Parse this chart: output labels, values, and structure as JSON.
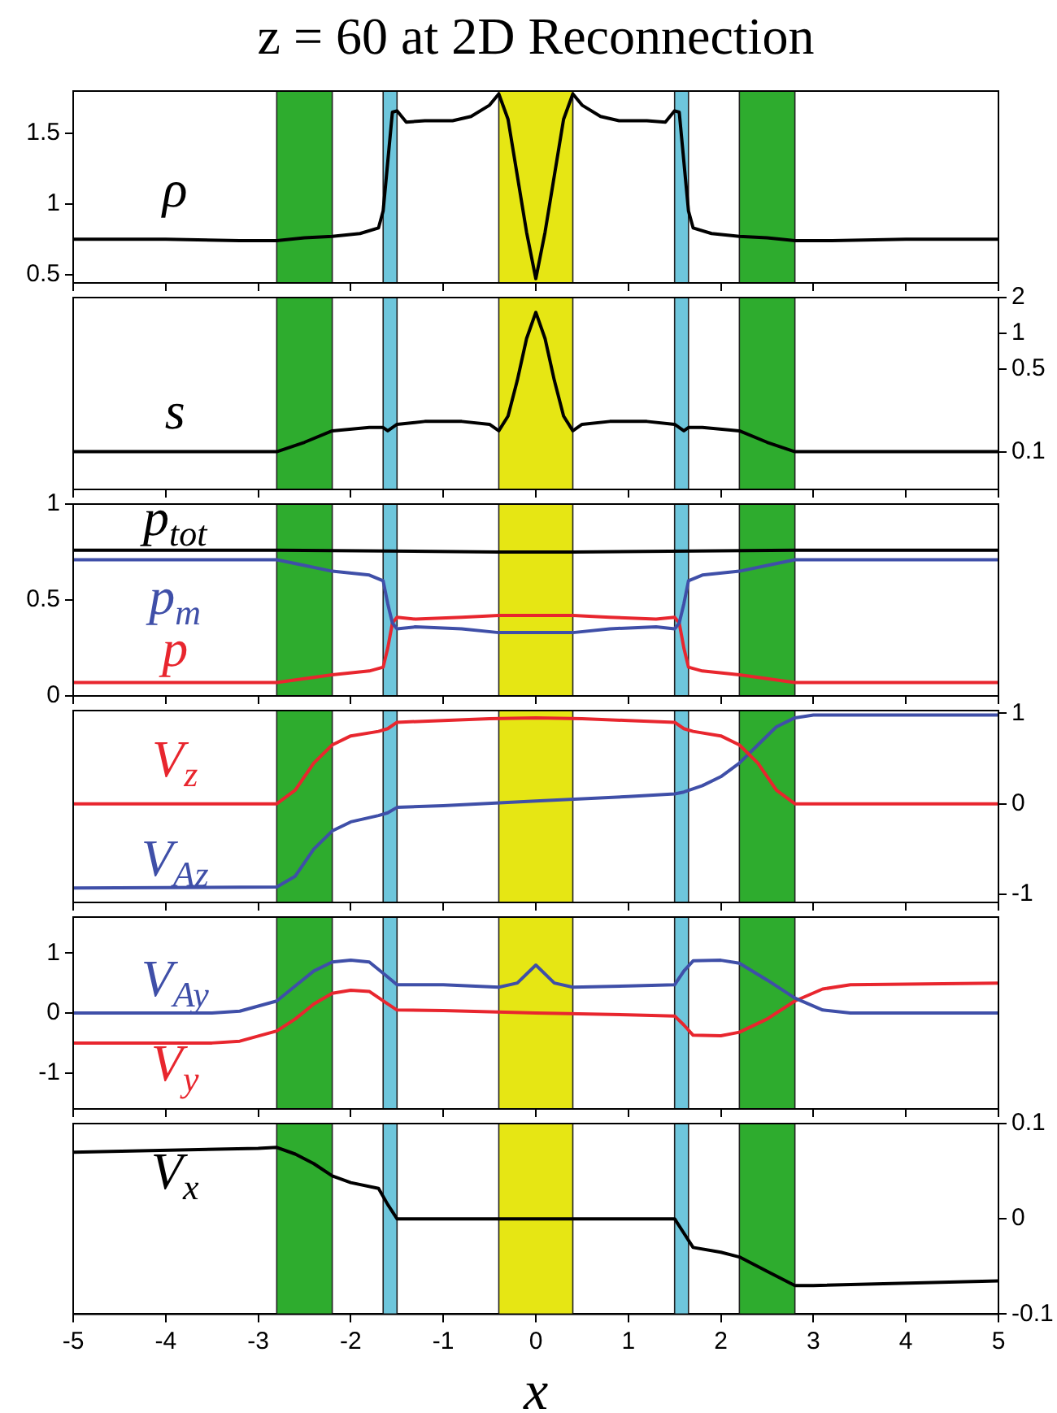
{
  "chart_data": [
    {
      "type": "line",
      "title": "z = 60 at 2D Reconnection",
      "xlim": [
        -5,
        5
      ],
      "xticks": [
        -5,
        -4,
        -3,
        -2,
        -1,
        0,
        1,
        2,
        3,
        4,
        5
      ],
      "ylim": [
        0.44,
        1.8
      ],
      "yticks": [
        0.5,
        1,
        1.5
      ],
      "tick_labels": "y",
      "bands": [
        {
          "axis": "x",
          "from": -2.8,
          "to": -2.2,
          "color": "#2eac2e"
        },
        {
          "axis": "x",
          "from": -1.65,
          "to": -1.5,
          "color": "#6ec6dc"
        },
        {
          "axis": "x",
          "from": -0.4,
          "to": 0.4,
          "color": "#e6e614"
        },
        {
          "axis": "x",
          "from": 1.5,
          "to": 1.65,
          "color": "#6ec6dc"
        },
        {
          "axis": "x",
          "from": 2.2,
          "to": 2.8,
          "color": "#2eac2e"
        }
      ],
      "series": [
        {
          "name": "ρ",
          "color": "#000000",
          "x": [
            -5,
            -4,
            -3.2,
            -2.8,
            -2.5,
            -2.2,
            -1.9,
            -1.7,
            -1.65,
            -1.6,
            -1.55,
            -1.5,
            -1.4,
            -1.2,
            -0.9,
            -0.7,
            -0.5,
            -0.4,
            -0.3,
            -0.2,
            -0.1,
            0,
            0.1,
            0.2,
            0.3,
            0.4,
            0.5,
            0.7,
            0.9,
            1.2,
            1.4,
            1.5,
            1.55,
            1.6,
            1.65,
            1.7,
            1.9,
            2.2,
            2.5,
            2.8,
            3.2,
            4,
            5
          ],
          "values": [
            0.75,
            0.75,
            0.74,
            0.74,
            0.76,
            0.77,
            0.79,
            0.83,
            0.95,
            1.3,
            1.65,
            1.66,
            1.58,
            1.59,
            1.59,
            1.62,
            1.7,
            1.78,
            1.6,
            1.2,
            0.8,
            0.47,
            0.8,
            1.2,
            1.6,
            1.78,
            1.7,
            1.62,
            1.59,
            1.59,
            1.58,
            1.66,
            1.65,
            1.3,
            0.95,
            0.83,
            0.79,
            0.77,
            0.76,
            0.74,
            0.74,
            0.75,
            0.75
          ]
        }
      ]
    },
    {
      "type": "line",
      "xlim": [
        -5,
        5
      ],
      "xticks": [
        -5,
        -4,
        -3,
        -2,
        -1,
        0,
        1,
        2,
        3,
        4,
        5
      ],
      "y2lim": [
        0.048,
        2
      ],
      "y2ticks": [
        0.1,
        0.5,
        1,
        2
      ],
      "log": "y2",
      "tick_labels": "y",
      "bands": [
        {
          "axis": "x",
          "from": -2.8,
          "to": -2.2,
          "color": "#2eac2e"
        },
        {
          "axis": "x",
          "from": -1.65,
          "to": -1.5,
          "color": "#6ec6dc"
        },
        {
          "axis": "x",
          "from": -0.4,
          "to": 0.4,
          "color": "#e6e614"
        },
        {
          "axis": "x",
          "from": 1.5,
          "to": 1.65,
          "color": "#6ec6dc"
        },
        {
          "axis": "x",
          "from": 2.2,
          "to": 2.8,
          "color": "#2eac2e"
        }
      ],
      "series": [
        {
          "name": "s",
          "color": "#000000",
          "axis": "y2",
          "x": [
            -5,
            -3,
            -2.8,
            -2.5,
            -2.2,
            -1.8,
            -1.65,
            -1.6,
            -1.5,
            -1.2,
            -0.8,
            -0.5,
            -0.4,
            -0.3,
            -0.2,
            -0.1,
            0,
            0.1,
            0.2,
            0.3,
            0.4,
            0.5,
            0.8,
            1.2,
            1.5,
            1.6,
            1.65,
            1.8,
            2.2,
            2.5,
            2.8,
            3,
            5
          ],
          "values": [
            0.1,
            0.1,
            0.1,
            0.12,
            0.15,
            0.16,
            0.16,
            0.15,
            0.17,
            0.18,
            0.18,
            0.17,
            0.15,
            0.2,
            0.4,
            0.9,
            1.5,
            0.9,
            0.4,
            0.2,
            0.15,
            0.17,
            0.18,
            0.18,
            0.17,
            0.15,
            0.16,
            0.16,
            0.15,
            0.12,
            0.1,
            0.1,
            0.1
          ]
        }
      ]
    },
    {
      "type": "line",
      "xlim": [
        -5,
        5
      ],
      "xticks": [
        -5,
        -4,
        -3,
        -2,
        -1,
        0,
        1,
        2,
        3,
        4,
        5
      ],
      "ylim": [
        0,
        1
      ],
      "yticks": [
        0,
        0.5,
        1
      ],
      "tick_labels": "y",
      "bands": [
        {
          "axis": "x",
          "from": -2.8,
          "to": -2.2,
          "color": "#2eac2e"
        },
        {
          "axis": "x",
          "from": -1.65,
          "to": -1.5,
          "color": "#6ec6dc"
        },
        {
          "axis": "x",
          "from": -0.4,
          "to": 0.4,
          "color": "#e6e614"
        },
        {
          "axis": "x",
          "from": 1.5,
          "to": 1.65,
          "color": "#6ec6dc"
        },
        {
          "axis": "x",
          "from": 2.2,
          "to": 2.8,
          "color": "#2eac2e"
        }
      ],
      "series": [
        {
          "name": "p$_{tot}$",
          "color": "#000000",
          "x": [
            -5,
            -2.8,
            -0.4,
            0,
            0.4,
            2.8,
            5
          ],
          "values": [
            0.76,
            0.76,
            0.75,
            0.75,
            0.75,
            0.76,
            0.76
          ]
        },
        {
          "name": "p$_{m}$",
          "color": "#3f4fa8",
          "x": [
            -5,
            -2.8,
            -2.5,
            -2.2,
            -1.8,
            -1.65,
            -1.6,
            -1.55,
            -1.5,
            -1.3,
            -0.8,
            -0.4,
            0,
            0.4,
            0.8,
            1.3,
            1.5,
            1.55,
            1.6,
            1.65,
            1.8,
            2.2,
            2.5,
            2.8,
            5
          ],
          "values": [
            0.71,
            0.71,
            0.68,
            0.65,
            0.63,
            0.6,
            0.48,
            0.38,
            0.35,
            0.36,
            0.35,
            0.33,
            0.33,
            0.33,
            0.35,
            0.36,
            0.35,
            0.38,
            0.48,
            0.6,
            0.63,
            0.65,
            0.68,
            0.71,
            0.71
          ]
        },
        {
          "name": "p",
          "color": "#e8262e",
          "x": [
            -5,
            -2.8,
            -2.5,
            -2.2,
            -1.8,
            -1.65,
            -1.6,
            -1.55,
            -1.5,
            -1.3,
            -0.8,
            -0.4,
            0,
            0.4,
            0.8,
            1.3,
            1.5,
            1.55,
            1.6,
            1.65,
            1.8,
            2.2,
            2.5,
            2.8,
            5
          ],
          "values": [
            0.07,
            0.07,
            0.09,
            0.11,
            0.13,
            0.15,
            0.25,
            0.38,
            0.41,
            0.4,
            0.41,
            0.42,
            0.42,
            0.42,
            0.41,
            0.4,
            0.41,
            0.38,
            0.25,
            0.15,
            0.13,
            0.11,
            0.09,
            0.07,
            0.07
          ]
        }
      ]
    },
    {
      "type": "line",
      "xlim": [
        -5,
        5
      ],
      "xticks": [
        -5,
        -4,
        -3,
        -2,
        -1,
        0,
        1,
        2,
        3,
        4,
        5
      ],
      "y2lim": [
        -1.09,
        1.03
      ],
      "y2ticks": [
        -1,
        0,
        1
      ],
      "tick_labels": "y",
      "bands": [
        {
          "axis": "x",
          "from": -2.8,
          "to": -2.2,
          "color": "#2eac2e"
        },
        {
          "axis": "x",
          "from": -1.65,
          "to": -1.5,
          "color": "#6ec6dc"
        },
        {
          "axis": "x",
          "from": -0.4,
          "to": 0.4,
          "color": "#e6e614"
        },
        {
          "axis": "x",
          "from": 1.5,
          "to": 1.65,
          "color": "#6ec6dc"
        },
        {
          "axis": "x",
          "from": 2.2,
          "to": 2.8,
          "color": "#2eac2e"
        }
      ],
      "series": [
        {
          "name": "V$_{z}$",
          "color": "#e8262e",
          "axis": "y2",
          "x": [
            -5,
            -2.8,
            -2.6,
            -2.4,
            -2.2,
            -2,
            -1.7,
            -1.6,
            -1.5,
            -1,
            -0.5,
            0,
            0.5,
            1,
            1.5,
            1.6,
            1.7,
            2,
            2.2,
            2.4,
            2.6,
            2.8,
            5
          ],
          "values": [
            0,
            0,
            0.15,
            0.45,
            0.65,
            0.75,
            0.8,
            0.83,
            0.9,
            0.92,
            0.94,
            0.95,
            0.94,
            0.92,
            0.9,
            0.83,
            0.8,
            0.75,
            0.65,
            0.45,
            0.15,
            0,
            0
          ]
        },
        {
          "name": "V$_{Az}$",
          "color": "#3f4fa8",
          "axis": "y2",
          "x": [
            -5,
            -2.8,
            -2.6,
            -2.4,
            -2.2,
            -2,
            -1.7,
            -1.6,
            -1.5,
            -1,
            0,
            1,
            1.5,
            1.6,
            1.8,
            2,
            2.2,
            2.4,
            2.6,
            2.8,
            3,
            5
          ],
          "values": [
            -0.93,
            -0.92,
            -0.8,
            -0.5,
            -0.3,
            -0.2,
            -0.13,
            -0.1,
            -0.04,
            -0.02,
            0.03,
            0.08,
            0.11,
            0.13,
            0.2,
            0.3,
            0.45,
            0.65,
            0.85,
            0.95,
            0.98,
            0.98
          ]
        }
      ]
    },
    {
      "type": "line",
      "xlim": [
        -5,
        5
      ],
      "xticks": [
        -5,
        -4,
        -3,
        -2,
        -1,
        0,
        1,
        2,
        3,
        4,
        5
      ],
      "ylim": [
        -1.6,
        1.6
      ],
      "yticks": [
        -1,
        0,
        1
      ],
      "tick_labels": "y",
      "bands": [
        {
          "axis": "x",
          "from": -2.8,
          "to": -2.2,
          "color": "#2eac2e"
        },
        {
          "axis": "x",
          "from": -1.65,
          "to": -1.5,
          "color": "#6ec6dc"
        },
        {
          "axis": "x",
          "from": -0.4,
          "to": 0.4,
          "color": "#e6e614"
        },
        {
          "axis": "x",
          "from": 1.5,
          "to": 1.65,
          "color": "#6ec6dc"
        },
        {
          "axis": "x",
          "from": 2.2,
          "to": 2.8,
          "color": "#2eac2e"
        }
      ],
      "series": [
        {
          "name": "V$_{Ay}$",
          "color": "#3f4fa8",
          "x": [
            -5,
            -3.5,
            -3.2,
            -2.8,
            -2.6,
            -2.4,
            -2.2,
            -2,
            -1.8,
            -1.6,
            -1.5,
            -1,
            -0.4,
            -0.2,
            0,
            0.2,
            0.4,
            1,
            1.5,
            1.6,
            1.7,
            2,
            2.2,
            2.5,
            2.8,
            3.1,
            3.4,
            5
          ],
          "values": [
            0,
            0,
            0.03,
            0.2,
            0.45,
            0.7,
            0.85,
            0.88,
            0.85,
            0.6,
            0.47,
            0.47,
            0.43,
            0.5,
            0.8,
            0.5,
            0.43,
            0.45,
            0.47,
            0.7,
            0.87,
            0.88,
            0.83,
            0.55,
            0.25,
            0.05,
            0,
            0
          ]
        },
        {
          "name": "V$_{y}$",
          "color": "#e8262e",
          "x": [
            -5,
            -3.5,
            -3.2,
            -2.8,
            -2.6,
            -2.4,
            -2.2,
            -2,
            -1.8,
            -1.6,
            -1.5,
            -1,
            0,
            1,
            1.5,
            1.6,
            1.7,
            2,
            2.2,
            2.5,
            2.8,
            3.1,
            3.4,
            5
          ],
          "values": [
            -0.5,
            -0.5,
            -0.47,
            -0.3,
            -0.1,
            0.15,
            0.33,
            0.38,
            0.36,
            0.15,
            0.05,
            0.04,
            0,
            -0.03,
            -0.05,
            -0.2,
            -0.37,
            -0.38,
            -0.32,
            -0.1,
            0.2,
            0.4,
            0.47,
            0.5
          ]
        }
      ]
    },
    {
      "type": "line",
      "xlabel": "x",
      "xlim": [
        -5,
        5
      ],
      "xticks": [
        -5,
        -4,
        -3,
        -2,
        -1,
        0,
        1,
        2,
        3,
        4,
        5
      ],
      "y2lim": [
        -0.1,
        0.1
      ],
      "y2ticks": [
        -0.1,
        0,
        0.1
      ],
      "bands": [
        {
          "axis": "x",
          "from": -2.8,
          "to": -2.2,
          "color": "#2eac2e"
        },
        {
          "axis": "x",
          "from": -1.65,
          "to": -1.5,
          "color": "#6ec6dc"
        },
        {
          "axis": "x",
          "from": -0.4,
          "to": 0.4,
          "color": "#e6e614"
        },
        {
          "axis": "x",
          "from": 1.5,
          "to": 1.65,
          "color": "#6ec6dc"
        },
        {
          "axis": "x",
          "from": 2.2,
          "to": 2.8,
          "color": "#2eac2e"
        }
      ],
      "series": [
        {
          "name": "V$_{x}$",
          "color": "#000000",
          "axis": "y2",
          "x": [
            -5,
            -3,
            -2.8,
            -2.6,
            -2.4,
            -2.2,
            -2,
            -1.7,
            -1.6,
            -1.5,
            -1,
            0,
            1,
            1.5,
            1.6,
            1.7,
            2,
            2.2,
            2.5,
            2.8,
            3,
            5
          ],
          "values": [
            0.07,
            0.074,
            0.075,
            0.068,
            0.058,
            0.045,
            0.038,
            0.032,
            0.015,
            0,
            0,
            0,
            0,
            0,
            -0.015,
            -0.03,
            -0.035,
            -0.04,
            -0.055,
            -0.07,
            -0.07,
            -0.065
          ]
        }
      ]
    }
  ]
}
